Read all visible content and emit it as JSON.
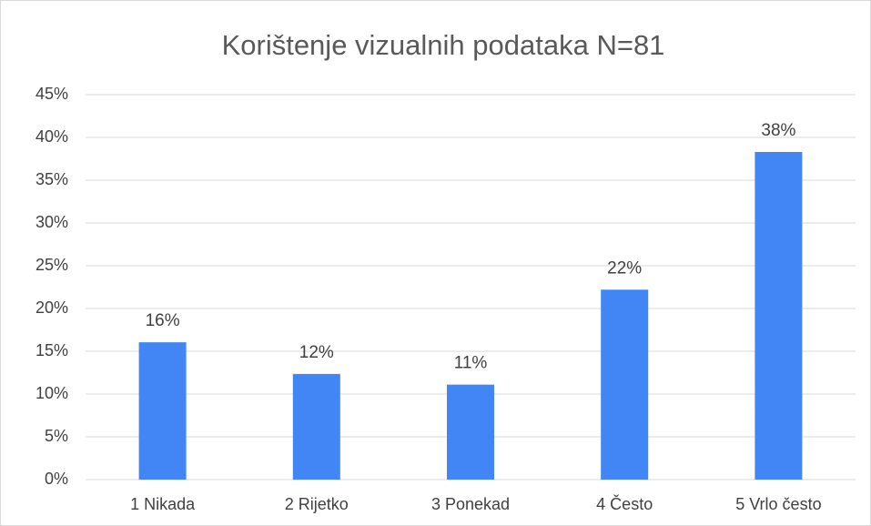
{
  "chart_data": {
    "type": "bar",
    "title": "Korištenje vizualnih podataka N=81",
    "categories": [
      "1 Nikada",
      "2 Rijetko",
      "3 Ponekad",
      "4 Često",
      "5 Vrlo često"
    ],
    "values": [
      16.05,
      12.35,
      11.1,
      22.2,
      38.3
    ],
    "value_labels": [
      "16%",
      "12%",
      "11%",
      "22%",
      "38%"
    ],
    "color": "#4285f4",
    "ylim": [
      0,
      45
    ],
    "yticks": [
      {
        "value": 0,
        "label": "0%"
      },
      {
        "value": 5,
        "label": "5%"
      },
      {
        "value": 10,
        "label": "10%"
      },
      {
        "value": 15,
        "label": "15%"
      },
      {
        "value": 20,
        "label": "20%"
      },
      {
        "value": 25,
        "label": "25%"
      },
      {
        "value": 30,
        "label": "30%"
      },
      {
        "value": 35,
        "label": "35%"
      },
      {
        "value": 40,
        "label": "40%"
      },
      {
        "value": 45,
        "label": "45%"
      }
    ],
    "grid": true
  }
}
